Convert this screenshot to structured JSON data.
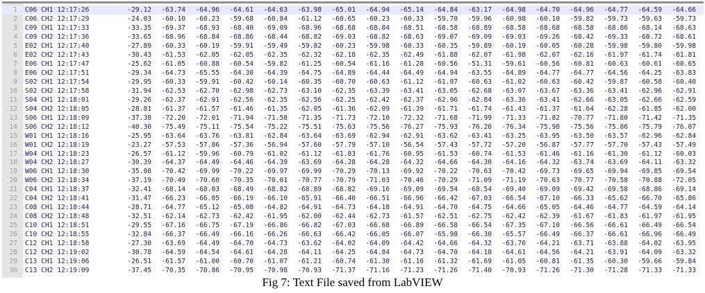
{
  "caption": "Fig 7: Text File saved from LabVIEW",
  "active_line": 1,
  "rows": [
    {
      "n": "1",
      "label": "C06 CH1 12:17:26",
      "values": [
        "-29.12",
        "-63.74",
        "-64.96",
        "-64.61",
        "-64.63",
        "-63.98",
        "-65.01",
        "-64.94",
        "-65.14",
        "-64.84",
        "-63.17",
        "-64.98",
        "-64.70",
        "-64.96",
        "-64.77",
        "-64.59",
        "-64.66"
      ]
    },
    {
      "n": "2",
      "label": "C06 CH2 12:17:29",
      "values": [
        "-24.03",
        "-60.10",
        "-60.23",
        "-59.68",
        "-60.84",
        "-61.12",
        "-60.65",
        "-60.23",
        "-60.33",
        "-59.70",
        "-59.96",
        "-60.98",
        "-60.10",
        "-59.82",
        "-59.73",
        "-59.63",
        "-59.73"
      ]
    },
    {
      "n": "3",
      "label": "C09 CH1 12:17:33",
      "values": [
        "-33.35",
        "-69.37",
        "-68.93",
        "-68.40",
        "-69.09",
        "-68.96",
        "-68.68",
        "-68.84",
        "-68.51",
        "-68.58",
        "-68.89",
        "-68.58",
        "-68.68",
        "-68.58",
        "-68.86",
        "-68.14",
        "-68.63"
      ]
    },
    {
      "n": "4",
      "label": "C09 CH2 12:17:36",
      "values": [
        "-33.65",
        "-68.96",
        "-68.84",
        "-68.86",
        "-68.44",
        "-68.82",
        "-69.03",
        "-68.82",
        "-68.63",
        "-69.07",
        "-69.09",
        "-69.03",
        "-69.26",
        "-68.42",
        "-69.33",
        "-68.72",
        "-68.61"
      ]
    },
    {
      "n": "5",
      "label": "E02 CH1 12:17:40",
      "values": [
        "-27.89",
        "-60.33",
        "-60.19",
        "-59.91",
        "-59.49",
        "-59.82",
        "-60.23",
        "-59.98",
        "-60.33",
        "-60.35",
        "-59.89",
        "-60.19",
        "-60.05",
        "-60.28",
        "-59.98",
        "-59.80",
        "-59.98"
      ]
    },
    {
      "n": "6",
      "label": "E02 CH2 12:17:43",
      "values": [
        "-30.43",
        "-61.53",
        "-62.05",
        "-62.05",
        "-62.35",
        "-62.32",
        "-62.18",
        "-62.35",
        "-62.49",
        "-61.88",
        "-62.07",
        "-61.98",
        "-62.07",
        "-62.16",
        "-61.97",
        "-61.74",
        "-61.81"
      ]
    },
    {
      "n": "7",
      "label": "E06 CH1 12:17:47",
      "values": [
        "-25.62",
        "-61.05",
        "-60.88",
        "-60.54",
        "-59.82",
        "-61.25",
        "-60.54",
        "-61.16",
        "-61.28",
        "-60.56",
        "-51.31",
        "-59.61",
        "-60.56",
        "-60.81",
        "-60.63",
        "-60.61",
        "-60.65"
      ]
    },
    {
      "n": "8",
      "label": "E06 CH2 12:17:51",
      "values": [
        "-29.34",
        "-64.73",
        "-65.55",
        "-64.30",
        "-64.39",
        "-64.75",
        "-64.89",
        "-64.44",
        "-64.49",
        "-64.94",
        "-63.55",
        "-64.89",
        "-64.77",
        "-64.77",
        "-64.56",
        "-64.25",
        "-63.83"
      ]
    },
    {
      "n": "9",
      "label": "S02 CH1 12:17:54",
      "values": [
        "-29.95",
        "-60.33",
        "-59.91",
        "-60.42",
        "-60.14",
        "-60.35",
        "-60.70",
        "-60.63",
        "-61.12",
        "-61.07",
        "-60.63",
        "-61.02",
        "-60.63",
        "-60.42",
        "-59.87",
        "-60.58",
        "-60.40"
      ]
    },
    {
      "n": "10",
      "label": "S02 CH2 12:17:58",
      "values": [
        "-31.94",
        "-62.53",
        "-62.70",
        "-62.98",
        "-62.73",
        "-63.10",
        "-62.35",
        "-63.39",
        "-63.41",
        "-63.05",
        "-62.68",
        "-63.07",
        "-63.67",
        "-63.36",
        "-63.41",
        "-62.96",
        "-62.91"
      ]
    },
    {
      "n": "11",
      "label": "S04 CH1 12:18:01",
      "values": [
        "-29.26",
        "-62.37",
        "-62.91",
        "-62.56",
        "-62.35",
        "-62.56",
        "-62.25",
        "-62.42",
        "-62.37",
        "-62.96",
        "-62.84",
        "-63.36",
        "-63.41",
        "-62.66",
        "-63.05",
        "-62.66",
        "-62.59"
      ]
    },
    {
      "n": "12",
      "label": "S04 CH2 12:18:05",
      "values": [
        "-28.81",
        "-61.37",
        "-61.57",
        "-61.46",
        "-61.35",
        "-62.05",
        "-61.36",
        "-62.09",
        "-61.39",
        "-61.71",
        "-61.74",
        "-61.43",
        "-61.37",
        "-61.64",
        "-62.28",
        "-61.85",
        "-62.00"
      ]
    },
    {
      "n": "13",
      "label": "S06 CH1 12:18:09",
      "values": [
        "-37.38",
        "-72.20",
        "-72.01",
        "-71.94",
        "-71.58",
        "-71.35",
        "-71.73",
        "-72.10",
        "-72.32",
        "-71.68",
        "-71.99",
        "-71.33",
        "-71.82",
        "-70.77",
        "-71.80",
        "-71.42",
        "-71.35"
      ]
    },
    {
      "n": "14",
      "label": "S06 CH2 12:18:12",
      "values": [
        "-40.30",
        "-75.49",
        "-75.11",
        "-75.54",
        "-75.22",
        "-75.51",
        "-75.63",
        "-75.56",
        "-76.27",
        "-75.93",
        "-76.20",
        "-76.34",
        "-75.98",
        "-75.56",
        "-75.86",
        "-75.79",
        "-76.07"
      ]
    },
    {
      "n": "15",
      "label": "W01 CH1 12:18:16",
      "values": [
        "-25.95",
        "-63.64",
        "-63.76",
        "-63.81",
        "-62.84",
        "-63.64",
        "-63.69",
        "-62.94",
        "-62.91",
        "-63.62",
        "-63.41",
        "-63.25",
        "-63.95",
        "-63.50",
        "-63.57",
        "-62.96",
        "-62.84"
      ]
    },
    {
      "n": "16",
      "label": "W01 CH2 12:18:19",
      "values": [
        "-23.27",
        "-57.53",
        "-57.86",
        "-57.36",
        "-56.94",
        "-57.60",
        "-57.79",
        "-57.10",
        "-56.54",
        "-57.43",
        "-57.72",
        "-57.20",
        "-56.87",
        "-57.77",
        "-57.70",
        "-57.43",
        "-57.49"
      ]
    },
    {
      "n": "17",
      "label": "W04 CH1 12:18:23",
      "values": [
        "-26.57",
        "-61.12",
        "-59.96",
        "-60.79",
        "-61.02",
        "-61.12",
        "-61.83",
        "-61.76",
        "-60.95",
        "-61.53",
        "-60.74",
        "-61.53",
        "-61.46",
        "-61.16",
        "-61.30",
        "-61.12",
        "-60.03"
      ]
    },
    {
      "n": "18",
      "label": "W04 CH2 12:18:27",
      "values": [
        "-30.39",
        "-64.37",
        "-64.49",
        "-64.46",
        "-64.39",
        "-63.69",
        "-64.28",
        "-64.28",
        "-64.32",
        "-64.66",
        "-64.30",
        "-64.16",
        "-64.32",
        "-63.74",
        "-63.69",
        "-64.11",
        "-63.32"
      ]
    },
    {
      "n": "19",
      "label": "W06 CH1 12:18:30",
      "values": [
        "-35.08",
        "-70.42",
        "-69.99",
        "-70.22",
        "-69.97",
        "-69.99",
        "-70.29",
        "-70.13",
        "-69.92",
        "-70.22",
        "-70.63",
        "-70.42",
        "-69.73",
        "-69.65",
        "-69.94",
        "-69.85",
        "-69.54"
      ]
    },
    {
      "n": "20",
      "label": "W06 CH2 12:18:34",
      "values": [
        "-37.19",
        "-70.49",
        "-70.60",
        "-70.35",
        "-70.01",
        "-70.77",
        "-70.79",
        "-71.03",
        "-70.46",
        "-70.29",
        "-71.09",
        "-71.19",
        "-70.63",
        "-70.77",
        "-70.58",
        "-70.88",
        "-72.05"
      ]
    },
    {
      "n": "21",
      "label": "C04 CH1 12:18:37",
      "values": [
        "-32.41",
        "-68.14",
        "-68.03",
        "-68.49",
        "-68.82",
        "-68.89",
        "-68.82",
        "-69.16",
        "-69.09",
        "-69.54",
        "-68.54",
        "-69.40",
        "-69.09",
        "-69.42",
        "-69.58",
        "-68.86",
        "-69.14"
      ]
    },
    {
      "n": "22",
      "label": "C04 CH2 12:18:41",
      "values": [
        "-31.47",
        "-66.23",
        "-66.05",
        "-66.19",
        "-66.10",
        "-65.91",
        "-66.40",
        "-66.51",
        "-66.96",
        "-66.42",
        "-67.03",
        "-66.54",
        "-67.10",
        "-66.33",
        "-65.62",
        "-66.70",
        "-65.86"
      ]
    },
    {
      "n": "23",
      "label": "C08 CH1 12:18:44",
      "values": [
        "-28.71",
        "-64.77",
        "-65.12",
        "-65.08",
        "-64.82",
        "-64.91",
        "-64.73",
        "-64.18",
        "-64.91",
        "-64.70",
        "-64.75",
        "-64.66",
        "-65.05",
        "-64.46",
        "-64.77",
        "-64.59",
        "-64.14"
      ]
    },
    {
      "n": "24",
      "label": "C08 CH2 12:18:48",
      "values": [
        "-32.51",
        "-62.14",
        "-62.73",
        "-62.42",
        "-61.95",
        "-62.00",
        "-62.44",
        "-62.73",
        "-61.57",
        "-62.51",
        "-62.75",
        "-62.42",
        "-62.39",
        "-61.67",
        "-61.83",
        "-61.97",
        "-61.95"
      ]
    },
    {
      "n": "25",
      "label": "C10 CH1 12:18:51",
      "values": [
        "-29.55",
        "-67.16",
        "-66.75",
        "-67.19",
        "-66.86",
        "-66.82",
        "-67.03",
        "-66.68",
        "-66.89",
        "-66.58",
        "-66.54",
        "-67.35",
        "-67.10",
        "-66.56",
        "-66.61",
        "-66.49",
        "-66.54"
      ]
    },
    {
      "n": "26",
      "label": "C10 CH2 12:18:55",
      "values": [
        "-32.84",
        "-66.37",
        "-66.49",
        "-66.16",
        "-66.26",
        "-66.63",
        "-66.42",
        "-66.05",
        "-66.07",
        "-65.98",
        "-66.30",
        "-65.57",
        "-66.49",
        "-66.37",
        "-66.61",
        "-66.96",
        "-66.49"
      ]
    },
    {
      "n": "27",
      "label": "C12 CH1 12:18:58",
      "values": [
        "-27.30",
        "-63.69",
        "-64.49",
        "-64.70",
        "-64.73",
        "-63.62",
        "-64.02",
        "-64.09",
        "-64.42",
        "-64.66",
        "-64.32",
        "-63.76",
        "-64.21",
        "-63.71",
        "-63.88",
        "-64.02",
        "-63.95"
      ]
    },
    {
      "n": "28",
      "label": "C12 CH2 12:19:02",
      "values": [
        "-30.78",
        "-64.59",
        "-64.54",
        "-64.61",
        "-64.28",
        "-64.11",
        "-64.25",
        "-64.84",
        "-64.73",
        "-64.70",
        "-64.18",
        "-64.61",
        "-64.56",
        "-64.21",
        "-63.91",
        "-64.09",
        "-63.32"
      ]
    },
    {
      "n": "29",
      "label": "C13 CH1 12:19:06",
      "values": [
        "-26.51",
        "-61.57",
        "-61.00",
        "-60.70",
        "-61.07",
        "-61.21",
        "-60.74",
        "-61.30",
        "-61.16",
        "-61.32",
        "-61.69",
        "-61.05",
        "-60.81",
        "-61.35",
        "-60.30",
        "-59.66",
        "-59.84"
      ]
    },
    {
      "n": "30",
      "label": "C13 CH2 12:19:09",
      "values": [
        "-37.45",
        "-70.35",
        "-70.86",
        "-70.95",
        "-70.98",
        "-70.93",
        "-71.37",
        "-71.16",
        "-71.23",
        "-71.26",
        "-71.40",
        "-70.93",
        "-71.26",
        "-71.30",
        "-71.28",
        "-71.33",
        "-71.33"
      ]
    }
  ]
}
